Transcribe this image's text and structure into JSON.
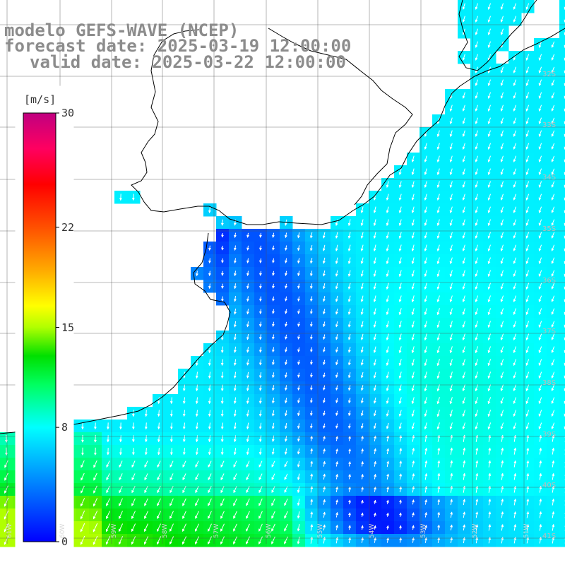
{
  "title": {
    "line1": "modelo GEFS-WAVE (NCEP)",
    "line2": "forecast date: 2025-03-19 12:00:00",
    "line3": "valid date: 2025-03-22 12:00:00"
  },
  "colorbar": {
    "unit": "[m/s]",
    "min": 0,
    "max": 30,
    "ticks": [
      {
        "value": 30,
        "label": "30"
      },
      {
        "value": 22,
        "label": "22"
      },
      {
        "value": 15,
        "label": "15"
      },
      {
        "value": 8,
        "label": "8"
      },
      {
        "value": 0,
        "label": "0"
      }
    ],
    "stops": [
      {
        "value": 0,
        "color": "#0000ff"
      },
      {
        "value": 4,
        "color": "#0080ff"
      },
      {
        "value": 8,
        "color": "#00ffff"
      },
      {
        "value": 11,
        "color": "#00ff60"
      },
      {
        "value": 13,
        "color": "#00e000"
      },
      {
        "value": 15,
        "color": "#b0ff00"
      },
      {
        "value": 16.5,
        "color": "#ffff00"
      },
      {
        "value": 19,
        "color": "#ffaa00"
      },
      {
        "value": 22,
        "color": "#ff5000"
      },
      {
        "value": 25,
        "color": "#ff0000"
      },
      {
        "value": 27.5,
        "color": "#ff0060"
      },
      {
        "value": 30,
        "color": "#c00080"
      }
    ]
  },
  "lat_labels": [
    "32S",
    "33S",
    "34S",
    "35S",
    "36S",
    "37S",
    "38S",
    "39S",
    "40S",
    "41S"
  ],
  "lon_labels": [
    "61W",
    "60W",
    "59W",
    "58W",
    "57W",
    "56W",
    "55W",
    "54W",
    "53W",
    "52W",
    "51W"
  ],
  "map_extent": {
    "lon_min": -61.5,
    "lon_max": -50.5,
    "lat_min": -41.5,
    "lat_max": -30.5
  },
  "wind_field_note": "wind speed shading with arrows over ocean; land left white with coastline"
}
